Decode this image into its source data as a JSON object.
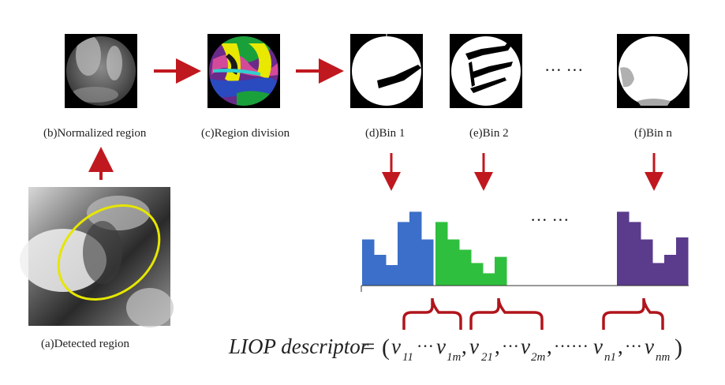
{
  "captions": {
    "detected": "(a)Detected region",
    "normalized": "(b)Normalized  region",
    "division": "(c)Region division",
    "bin1": "(d)Bin 1",
    "bin2": "(e)Bin 2",
    "binn": "(f)Bin n"
  },
  "ellipses": {
    "top": "··· ···",
    "middle": "··· ···"
  },
  "formula": {
    "label": "LIOP descriptor",
    "equals": "=",
    "open": "(",
    "close": ")",
    "comma": ",",
    "dots": "···",
    "long_dots": "······",
    "v": "v",
    "sub_11": "11",
    "sub_1m": "1m",
    "sub_21": "21",
    "sub_2m": "2m",
    "sub_n1": "n1",
    "sub_nm": "nm"
  },
  "colors": {
    "arrow": "#c0181f",
    "ellipse": "#e6e600",
    "bin1_bars": "#3b6fc9",
    "bin2_bars": "#2fbf3e",
    "binn_bars": "#5a3b8c",
    "brace": "#b0151c"
  },
  "histograms": {
    "bin1": [
      0.45,
      0.3,
      0.2,
      0.62,
      0.72,
      0.45
    ],
    "bin2": [
      0.62,
      0.45,
      0.35,
      0.22,
      0.12,
      0.28
    ],
    "binn": [
      0.72,
      0.62,
      0.45,
      0.22,
      0.3,
      0.47
    ]
  }
}
